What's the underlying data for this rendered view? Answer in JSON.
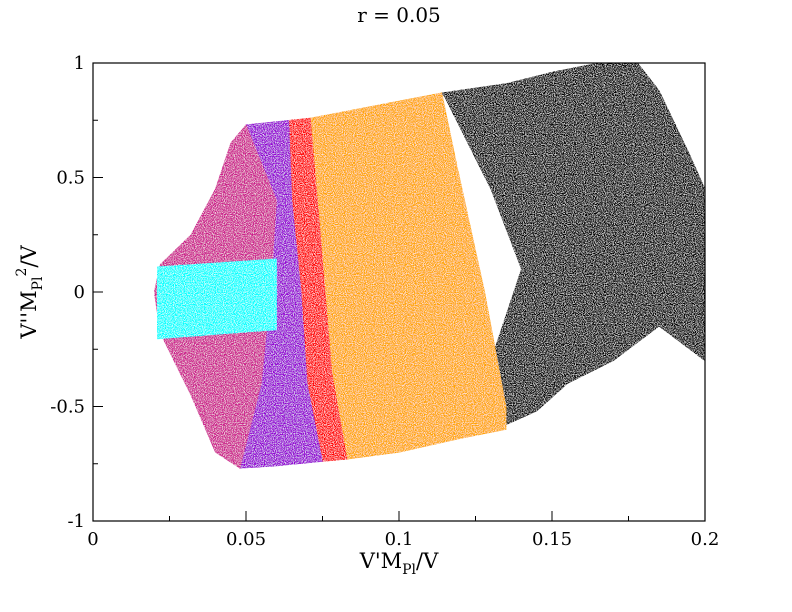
{
  "chart_data": {
    "type": "scatter",
    "title": "r = 0.05",
    "xlabel": {
      "base": "V'M",
      "sub": "Pl",
      "tail": "/V"
    },
    "ylabel": {
      "base": "V''M",
      "sub": "Pl",
      "sup": "2",
      "tail": "/V"
    },
    "xlim": [
      0,
      0.2
    ],
    "ylim": [
      -1,
      1
    ],
    "x_ticks": [
      {
        "value": 0,
        "label": "0"
      },
      {
        "value": 0.05,
        "label": "0.05"
      },
      {
        "value": 0.1,
        "label": "0.1"
      },
      {
        "value": 0.15,
        "label": "0.15"
      },
      {
        "value": 0.2,
        "label": "0.2"
      }
    ],
    "y_ticks": [
      {
        "value": 1,
        "label": "1"
      },
      {
        "value": 0.5,
        "label": "0.5"
      },
      {
        "value": 0,
        "label": "0"
      },
      {
        "value": -0.5,
        "label": "-0.5"
      },
      {
        "value": -1,
        "label": "-1"
      }
    ],
    "grid": false,
    "legend": "none",
    "series": [
      {
        "color": "#000000",
        "region_outline": [
          [
            0.114,
            0.87
          ],
          [
            0.135,
            0.91
          ],
          [
            0.15,
            0.96
          ],
          [
            0.165,
            1.0
          ],
          [
            0.178,
            1.0
          ],
          [
            0.185,
            0.88
          ],
          [
            0.195,
            0.6
          ],
          [
            0.2,
            0.45
          ],
          [
            0.2,
            -0.3
          ],
          [
            0.185,
            -0.15
          ],
          [
            0.17,
            -0.3
          ],
          [
            0.155,
            -0.4
          ],
          [
            0.145,
            -0.52
          ],
          [
            0.135,
            -0.58
          ],
          [
            0.12,
            -0.61
          ],
          [
            0.13,
            -0.3
          ],
          [
            0.14,
            0.1
          ],
          [
            0.13,
            0.45
          ],
          [
            0.115,
            0.85
          ]
        ]
      },
      {
        "color": "#ffa500",
        "region_outline": [
          [
            0.071,
            0.76
          ],
          [
            0.114,
            0.87
          ],
          [
            0.119,
            0.55
          ],
          [
            0.128,
            0.0
          ],
          [
            0.135,
            -0.5
          ],
          [
            0.135,
            -0.6
          ],
          [
            0.12,
            -0.64
          ],
          [
            0.1,
            -0.7
          ],
          [
            0.083,
            -0.73
          ],
          [
            0.078,
            -0.35
          ],
          [
            0.074,
            0.3
          ]
        ]
      },
      {
        "color": "#ff0000",
        "region_outline": [
          [
            0.064,
            0.75
          ],
          [
            0.071,
            0.76
          ],
          [
            0.074,
            0.3
          ],
          [
            0.078,
            -0.35
          ],
          [
            0.083,
            -0.73
          ],
          [
            0.075,
            -0.74
          ],
          [
            0.07,
            -0.4
          ],
          [
            0.068,
            0.0
          ],
          [
            0.065,
            0.4
          ]
        ]
      },
      {
        "color": "#9400d3",
        "region_outline": [
          [
            0.05,
            0.73
          ],
          [
            0.064,
            0.75
          ],
          [
            0.065,
            0.4
          ],
          [
            0.068,
            0.0
          ],
          [
            0.07,
            -0.4
          ],
          [
            0.075,
            -0.74
          ],
          [
            0.06,
            -0.76
          ],
          [
            0.048,
            -0.77
          ],
          [
            0.055,
            -0.4
          ],
          [
            0.058,
            0.0
          ],
          [
            0.06,
            0.4
          ]
        ]
      },
      {
        "color": "#cc1a8c",
        "region_outline": [
          [
            0.05,
            0.73
          ],
          [
            0.06,
            0.4
          ],
          [
            0.058,
            0.0
          ],
          [
            0.055,
            -0.4
          ],
          [
            0.048,
            -0.77
          ],
          [
            0.04,
            -0.7
          ],
          [
            0.032,
            -0.45
          ],
          [
            0.022,
            -0.18
          ],
          [
            0.02,
            0.0
          ],
          [
            0.022,
            0.12
          ],
          [
            0.032,
            0.25
          ],
          [
            0.04,
            0.45
          ],
          [
            0.045,
            0.65
          ]
        ]
      },
      {
        "color": "#00ffff",
        "region_outline": [
          [
            0.021,
            0.11
          ],
          [
            0.06,
            0.145
          ],
          [
            0.06,
            -0.165
          ],
          [
            0.021,
            -0.205
          ]
        ]
      }
    ]
  }
}
